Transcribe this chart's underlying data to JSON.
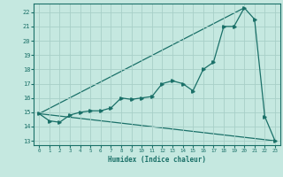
{
  "title": "",
  "xlabel": "Humidex (Indice chaleur)",
  "ylabel": "",
  "bg_color": "#c5e8e0",
  "grid_color": "#a8cfc8",
  "line_color": "#1a7068",
  "xlim": [
    -0.5,
    23.5
  ],
  "ylim": [
    12.7,
    22.6
  ],
  "xticks": [
    0,
    1,
    2,
    3,
    4,
    5,
    6,
    7,
    8,
    9,
    10,
    11,
    12,
    13,
    14,
    15,
    16,
    17,
    18,
    19,
    20,
    21,
    22,
    23
  ],
  "yticks": [
    13,
    14,
    15,
    16,
    17,
    18,
    19,
    20,
    21,
    22
  ],
  "curve1_x": [
    0,
    1,
    2,
    3,
    4,
    5,
    6,
    7,
    8,
    9,
    10,
    11,
    12,
    13,
    14,
    15,
    16,
    17,
    18,
    19,
    20,
    21,
    22,
    23
  ],
  "curve1_y": [
    14.9,
    14.4,
    14.3,
    14.8,
    15.0,
    15.1,
    15.1,
    15.3,
    16.0,
    15.9,
    16.0,
    16.1,
    17.0,
    17.2,
    17.0,
    16.5,
    18.0,
    18.5,
    21.0,
    21.0,
    22.3,
    21.5,
    14.7,
    13.0
  ],
  "curve2_x": [
    0,
    20
  ],
  "curve2_y": [
    14.9,
    22.3
  ],
  "curve3_x": [
    0,
    23
  ],
  "curve3_y": [
    14.9,
    13.0
  ],
  "marker_size": 2.5,
  "linewidth": 0.9,
  "xlabel_fontsize": 5.5,
  "xtick_fontsize": 4.2,
  "ytick_fontsize": 5.0
}
